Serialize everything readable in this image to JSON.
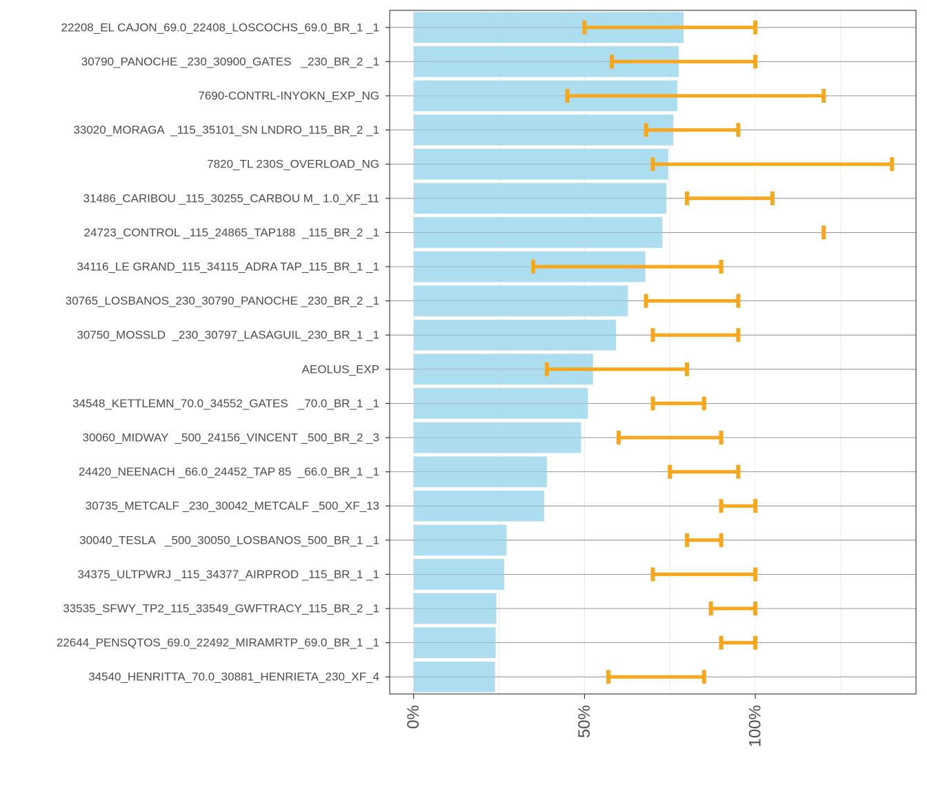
{
  "chart_data": {
    "type": "bar",
    "orientation": "horizontal",
    "title": "",
    "xlabel": "",
    "ylabel": "",
    "xlim": [
      -0.07,
      1.47
    ],
    "x_ticks": [
      {
        "value": 0.0,
        "label": "0%"
      },
      {
        "value": 0.5,
        "label": "50%"
      },
      {
        "value": 1.0,
        "label": "100%"
      }
    ],
    "minor_gridlines_x": [
      0.25,
      0.75,
      1.25
    ],
    "grid": true,
    "legend": "none",
    "colors": {
      "bar": "#a9dcee",
      "error_bar": "#f7a71c",
      "grid": "#ebebeb",
      "row_line": "#7f7f7f",
      "axis": "#333333"
    },
    "categories": [
      "22208_EL CAJON_69.0_22408_LOSCOCHS_69.0_BR_1 _1",
      "30790_PANOCHE _230_30900_GATES   _230_BR_2 _1",
      "7690-CONTRL-INYOKN_EXP_NG",
      "33020_MORAGA  _115_35101_SN LNDRO_115_BR_2 _1",
      "7820_TL 230S_OVERLOAD_NG",
      "31486_CARIBOU _115_30255_CARBOU M_ 1.0_XF_11",
      "24723_CONTROL _115_24865_TAP188  _115_BR_2 _1",
      "34116_LE GRAND_115_34115_ADRA TAP_115_BR_1 _1",
      "30765_LOSBANOS_230_30790_PANOCHE _230_BR_2 _1",
      "30750_MOSSLD  _230_30797_LASAGUIL_230_BR_1 _1",
      "AEOLUS_EXP",
      "34548_KETTLEMN_70.0_34552_GATES   _70.0_BR_1 _1",
      "30060_MIDWAY  _500_24156_VINCENT _500_BR_2 _3",
      "24420_NEENACH _66.0_24452_TAP 85  _66.0_BR_1 _1",
      "30735_METCALF _230_30042_METCALF _500_XF_13",
      "30040_TESLA   _500_30050_LOSBANOS_500_BR_1 _1",
      "34375_ULTPWRJ _115_34377_AIRPROD _115_BR_1 _1",
      "33535_SFWY_TP2_115_33549_GWFTRACY_115_BR_2 _1",
      "22644_PENSQTOS_69.0_22492_MIRAMRTP_69.0_BR_1 _1",
      "34540_HENRITTA_70.0_30881_HENRIETA_230_XF_4"
    ],
    "series": [
      {
        "name": "value",
        "mark": "bar",
        "values": [
          0.79,
          0.776,
          0.772,
          0.76,
          0.745,
          0.74,
          0.728,
          0.678,
          0.627,
          0.592,
          0.525,
          0.51,
          0.49,
          0.39,
          0.382,
          0.272,
          0.265,
          0.242,
          0.24,
          0.238
        ]
      },
      {
        "name": "range",
        "mark": "errorbar",
        "low": [
          0.5,
          0.58,
          0.45,
          0.68,
          0.7,
          0.8,
          1.2,
          0.35,
          0.68,
          0.7,
          0.39,
          0.7,
          0.6,
          0.75,
          0.9,
          0.8,
          0.7,
          0.87,
          0.9,
          0.57
        ],
        "high": [
          1.0,
          1.0,
          1.2,
          0.95,
          1.4,
          1.05,
          1.2,
          0.9,
          0.95,
          0.95,
          0.8,
          0.85,
          0.9,
          0.95,
          1.0,
          0.9,
          1.0,
          1.0,
          1.0,
          0.85
        ]
      }
    ]
  }
}
